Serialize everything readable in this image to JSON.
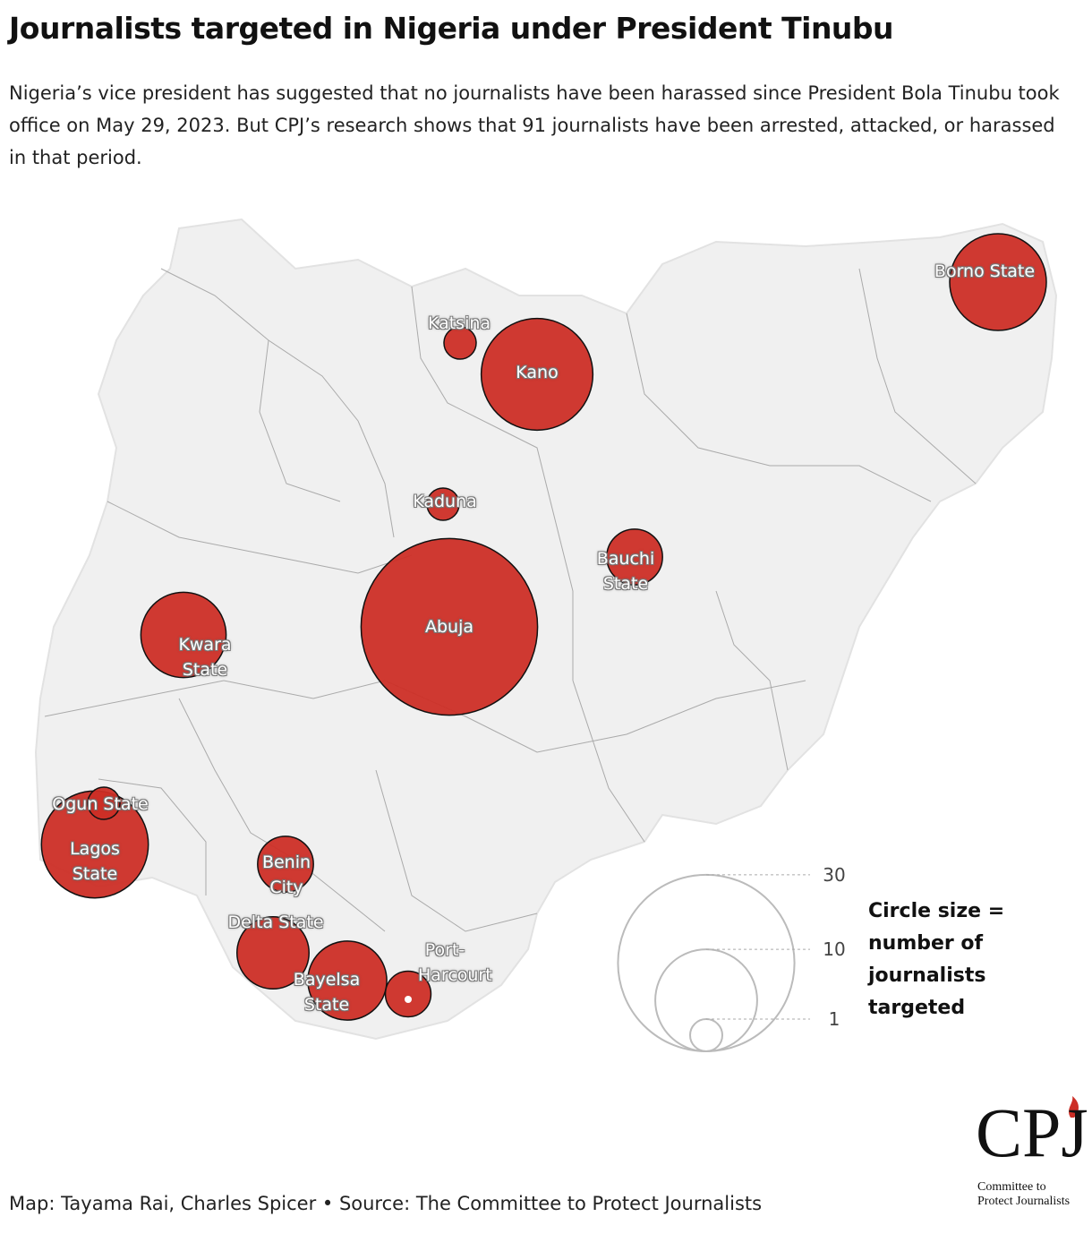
{
  "chart_data": {
    "type": "bubble-map",
    "title": "Journalists targeted in Nigeria under President Tinubu",
    "subtitle": "Nigeria’s vice president has suggested that no journalists have been harassed since President Bola Tinubu took office on May 29, 2023. But CPJ’s research shows that 91 journalists have been arrested, attacked, or harassed in that period.",
    "categories": [
      "Abuja",
      "Kano",
      "Lagos State",
      "Borno State",
      "Kwara State",
      "Delta State",
      "Bayelsa State",
      "Bauchi State",
      "Benin City",
      "Port-Harcourt",
      "Katsina",
      "Kaduna",
      "Ogun State"
    ],
    "values": [
      30,
      12,
      11,
      9,
      7,
      5,
      6,
      3,
      3,
      2,
      1,
      1,
      1
    ],
    "color": "#cc2e26",
    "legend_title": "Circle size = number of journalists targeted",
    "legend_values": [
      30,
      10,
      1
    ],
    "source": "Map: Tayama Rai, Charles Spicer • Source: The Committee to Protect Journalists",
    "logo": {
      "mark": "CPJ",
      "name": "Committee to Protect Journalists"
    }
  }
}
